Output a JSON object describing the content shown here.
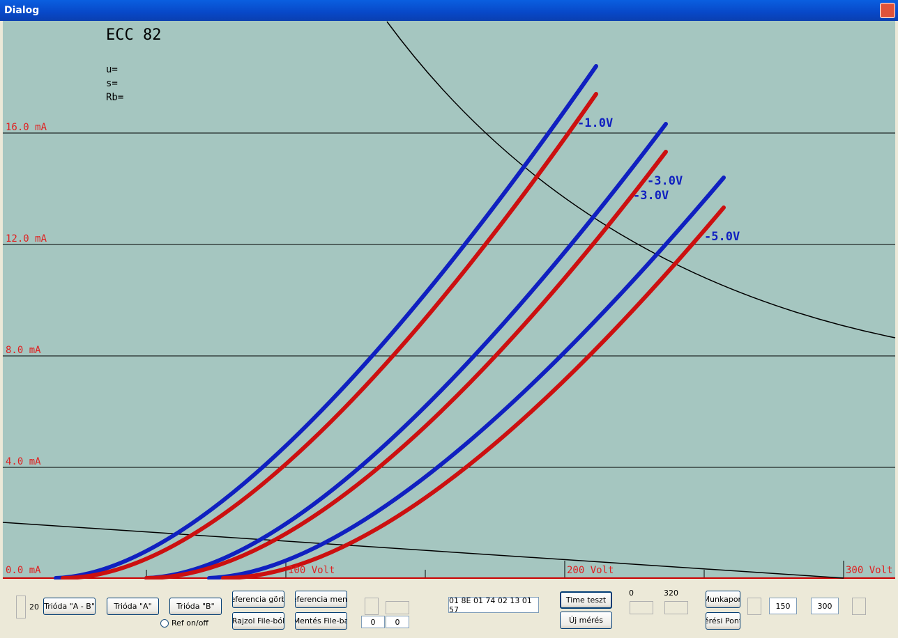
{
  "window": {
    "title": "Dialog"
  },
  "plot": {
    "tube": "ECC 82",
    "params": [
      "u=",
      "s=",
      "Rb="
    ],
    "y_labels": [
      "16.0 mA",
      "12.0 mA",
      "8.0 mA",
      "4.0 mA",
      "0.0 mA"
    ],
    "x_labels": [
      "100 Volt",
      "200 Volt",
      "300 Volt"
    ],
    "curve_labels": [
      "-1.0V",
      "-3.0V",
      "-3.0V",
      "-5.0V"
    ]
  },
  "controls": {
    "spin_value": "20",
    "buttons": {
      "ab": "Trióda \"A - B\"",
      "a": "Trióda \"A\"",
      "b": "Trióda \"B\"",
      "ref_curve": "eferencia görb",
      "draw_file": "Rajzol File-ból",
      "ref_save": "eferencia ment",
      "save_file": "Mentés File-ba",
      "time_test": "Time teszt",
      "new_meas": "Új mérés",
      "work_point": "Munkapon",
      "meas_point": "érési Pont"
    },
    "radio": "Ref on/off",
    "edit_a": "0",
    "edit_b": "0",
    "hex": "01 8E 01 74 02 13 01 57",
    "range_min": "0",
    "range_max": "320",
    "edit_c": "150",
    "edit_d": "300"
  }
}
